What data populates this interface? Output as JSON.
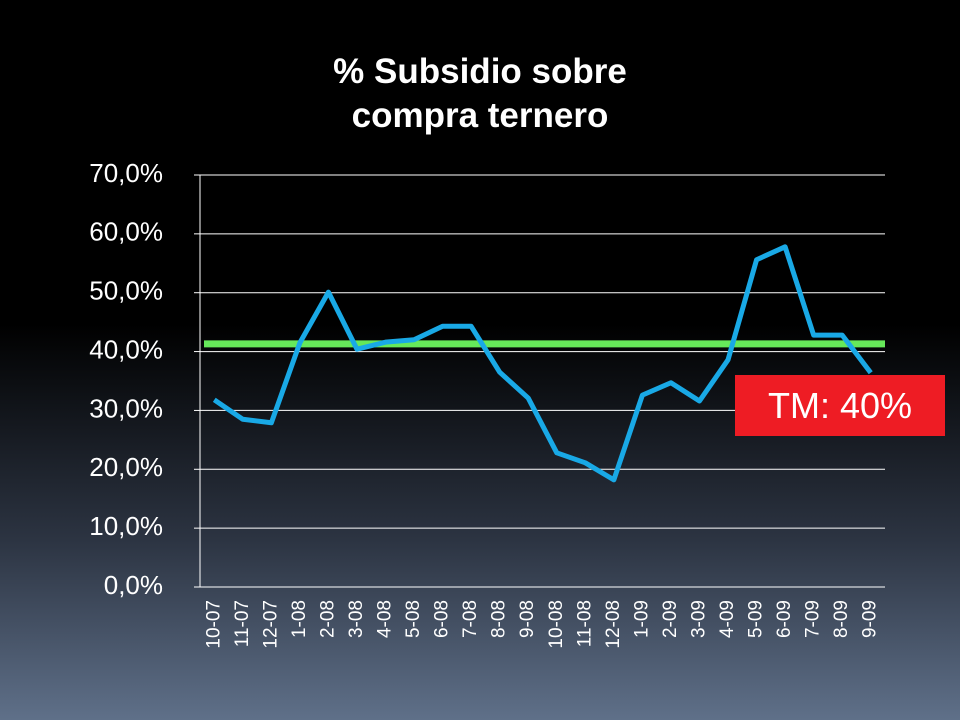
{
  "chart_data": {
    "type": "line",
    "title": "% Subsidio sobre compra ternero",
    "categories": [
      "10-07",
      "11-07",
      "12-07",
      "1-08",
      "2-08",
      "3-08",
      "4-08",
      "5-08",
      "6-08",
      "7-08",
      "8-08",
      "9-08",
      "10-08",
      "11-08",
      "12-08",
      "1-09",
      "2-09",
      "3-09",
      "4-09",
      "5-09",
      "6-09",
      "7-09",
      "8-09",
      "9-09"
    ],
    "series": [
      {
        "name": "% Subsidio",
        "color": "#19a9e6",
        "values": [
          31.8,
          28.5,
          27.9,
          41.5,
          50.1,
          40.4,
          41.6,
          42.0,
          44.3,
          44.3,
          36.5,
          32.1,
          22.8,
          21.1,
          18.2,
          32.6,
          34.7,
          31.6,
          38.6,
          55.6,
          57.8,
          42.8,
          42.8,
          36.4
        ]
      }
    ],
    "reference_line": {
      "value": 41.3,
      "color": "#66e85a"
    },
    "annotation": "TM: 40%",
    "ylim": [
      0,
      70
    ],
    "yticks": [
      {
        "value": 0,
        "label": "0,0%"
      },
      {
        "value": 10,
        "label": "10,0%"
      },
      {
        "value": 20,
        "label": "20,0%"
      },
      {
        "value": 30,
        "label": "30,0%"
      },
      {
        "value": 40,
        "label": "40,0%"
      },
      {
        "value": 50,
        "label": "50,0%"
      },
      {
        "value": 60,
        "label": "60,0%"
      },
      {
        "value": 70,
        "label": "70,0%"
      }
    ],
    "grid": true
  }
}
